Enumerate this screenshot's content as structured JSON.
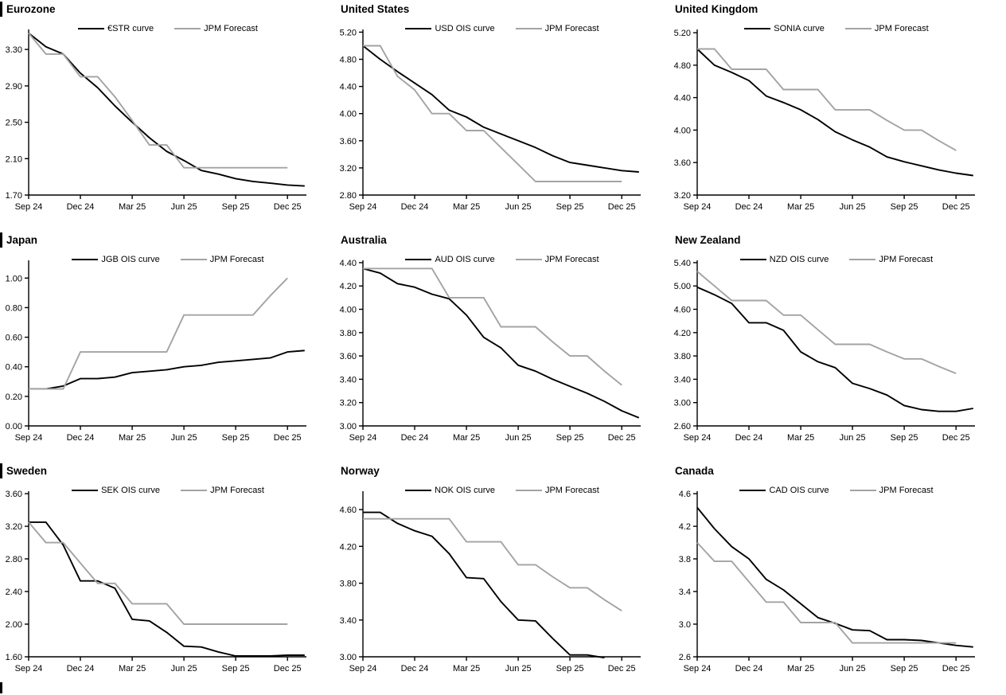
{
  "accent_colors": {
    "curve": "#000000",
    "forecast": "#a3a3a3"
  },
  "chart_data": {
    "type": "line",
    "x_ticklabels": [
      "Sep 24",
      "Dec 24",
      "Mar 25",
      "Jun 25",
      "Sep 25",
      "Dec 25"
    ],
    "x_tick_months": [
      0,
      3,
      6,
      9,
      12,
      15
    ],
    "x_axis_span_months": 16.1,
    "legend_position": "top-center",
    "grid": "off",
    "charts": [
      {
        "title": "Eurozone",
        "ylim": [
          1.7,
          3.52
        ],
        "yticks": [
          "1.70",
          "2.10",
          "2.50",
          "2.90",
          "3.30"
        ],
        "ytick_values": [
          1.7,
          2.1,
          2.5,
          2.9,
          3.3
        ],
        "series": [
          {
            "name": "€STR curve",
            "color": "#000000",
            "values": [
              3.48,
              3.33,
              3.25,
              3.04,
              2.88,
              2.68,
              2.5,
              2.33,
              2.18,
              2.08,
              1.97,
              1.93,
              1.88,
              1.85,
              1.83,
              1.81,
              1.8
            ]
          },
          {
            "name": "JPM Forecast",
            "color": "#a3a3a3",
            "values": [
              3.48,
              3.25,
              3.25,
              3.0,
              3.0,
              2.78,
              2.52,
              2.25,
              2.25,
              2.0,
              2.0,
              2.0,
              2.0,
              2.0,
              2.0,
              2.0
            ]
          }
        ]
      },
      {
        "title": "United States",
        "ylim": [
          2.8,
          5.24
        ],
        "yticks": [
          "2.80",
          "3.20",
          "3.60",
          "4.00",
          "4.40",
          "4.80",
          "5.20"
        ],
        "ytick_values": [
          2.8,
          3.2,
          3.6,
          4.0,
          4.4,
          4.8,
          5.2
        ],
        "series": [
          {
            "name": "USD OIS curve",
            "color": "#000000",
            "values": [
              5.0,
              4.8,
              4.62,
              4.45,
              4.28,
              4.05,
              3.95,
              3.8,
              3.7,
              3.6,
              3.5,
              3.38,
              3.28,
              3.24,
              3.2,
              3.16,
              3.14
            ]
          },
          {
            "name": "JPM Forecast",
            "color": "#a3a3a3",
            "values": [
              5.0,
              5.0,
              4.55,
              4.35,
              4.0,
              4.0,
              3.75,
              3.75,
              3.5,
              3.25,
              3.0,
              3.0,
              3.0,
              3.0,
              3.0,
              3.0
            ]
          }
        ]
      },
      {
        "title": "United Kingdom",
        "ylim": [
          3.2,
          5.24
        ],
        "yticks": [
          "3.20",
          "3.60",
          "4.00",
          "4.40",
          "4.80",
          "5.20"
        ],
        "ytick_values": [
          3.2,
          3.6,
          4.0,
          4.4,
          4.8,
          5.2
        ],
        "series": [
          {
            "name": "SONIA curve",
            "color": "#000000",
            "values": [
              5.0,
              4.8,
              4.71,
              4.61,
              4.42,
              4.34,
              4.25,
              4.13,
              3.98,
              3.88,
              3.79,
              3.67,
              3.61,
              3.56,
              3.51,
              3.47,
              3.44
            ]
          },
          {
            "name": "JPM Forecast",
            "color": "#a3a3a3",
            "values": [
              5.0,
              5.0,
              4.75,
              4.75,
              4.75,
              4.5,
              4.5,
              4.5,
              4.25,
              4.25,
              4.25,
              4.12,
              4.0,
              4.0,
              3.87,
              3.75
            ]
          }
        ]
      },
      {
        "title": "Japan",
        "ylim": [
          0.0,
          1.12
        ],
        "yticks": [
          "0.00",
          "0.20",
          "0.40",
          "0.60",
          "0.80",
          "1.00"
        ],
        "ytick_values": [
          0.0,
          0.2,
          0.4,
          0.6,
          0.8,
          1.0
        ],
        "series": [
          {
            "name": "JGB OIS curve",
            "color": "#000000",
            "values": [
              0.25,
              0.25,
              0.27,
              0.32,
              0.32,
              0.33,
              0.36,
              0.37,
              0.38,
              0.4,
              0.41,
              0.43,
              0.44,
              0.45,
              0.46,
              0.5,
              0.51
            ]
          },
          {
            "name": "JPM Forecast",
            "color": "#a3a3a3",
            "values": [
              0.25,
              0.25,
              0.25,
              0.5,
              0.5,
              0.5,
              0.5,
              0.5,
              0.5,
              0.75,
              0.75,
              0.75,
              0.75,
              0.75,
              0.88,
              1.0
            ]
          }
        ]
      },
      {
        "title": "Australia",
        "ylim": [
          3.0,
          4.42
        ],
        "yticks": [
          "3.00",
          "3.20",
          "3.40",
          "3.60",
          "3.80",
          "4.00",
          "4.20",
          "4.40"
        ],
        "ytick_values": [
          3.0,
          3.2,
          3.4,
          3.6,
          3.8,
          4.0,
          4.2,
          4.4
        ],
        "series": [
          {
            "name": "AUD OIS curve",
            "color": "#000000",
            "values": [
              4.35,
              4.31,
              4.22,
              4.19,
              4.13,
              4.09,
              3.95,
              3.76,
              3.67,
              3.52,
              3.47,
              3.4,
              3.34,
              3.28,
              3.21,
              3.13,
              3.07
            ]
          },
          {
            "name": "JPM Forecast",
            "color": "#a3a3a3",
            "values": [
              4.35,
              4.35,
              4.35,
              4.35,
              4.35,
              4.1,
              4.1,
              4.1,
              3.85,
              3.85,
              3.85,
              3.72,
              3.6,
              3.6,
              3.47,
              3.35
            ]
          }
        ]
      },
      {
        "title": "New Zealand",
        "ylim": [
          2.6,
          5.44
        ],
        "yticks": [
          "2.60",
          "3.00",
          "3.40",
          "3.80",
          "4.20",
          "4.60",
          "5.00",
          "5.40"
        ],
        "ytick_values": [
          2.6,
          3.0,
          3.4,
          3.8,
          4.2,
          4.6,
          5.0,
          5.4
        ],
        "series": [
          {
            "name": "NZD OIS curve",
            "color": "#000000",
            "values": [
              4.98,
              4.85,
              4.7,
              4.37,
              4.37,
              4.24,
              3.87,
              3.7,
              3.6,
              3.33,
              3.24,
              3.13,
              2.95,
              2.88,
              2.85,
              2.85,
              2.9
            ]
          },
          {
            "name": "JPM Forecast",
            "color": "#a3a3a3",
            "values": [
              5.25,
              5.0,
              4.75,
              4.75,
              4.75,
              4.5,
              4.5,
              4.25,
              4.0,
              4.0,
              4.0,
              3.87,
              3.75,
              3.75,
              3.62,
              3.5
            ]
          }
        ]
      },
      {
        "title": "Sweden",
        "ylim": [
          1.6,
          3.63
        ],
        "yticks": [
          "1.60",
          "2.00",
          "2.40",
          "2.80",
          "3.20",
          "3.60"
        ],
        "ytick_values": [
          1.6,
          2.0,
          2.4,
          2.8,
          3.2,
          3.6
        ],
        "series": [
          {
            "name": "SEK OIS curve",
            "color": "#000000",
            "values": [
              3.25,
              3.25,
              2.97,
              2.53,
              2.53,
              2.44,
              2.06,
              2.04,
              1.9,
              1.73,
              1.72,
              1.66,
              1.61,
              1.61,
              1.61,
              1.62,
              1.62
            ]
          },
          {
            "name": "JPM Forecast",
            "color": "#a3a3a3",
            "values": [
              3.25,
              3.0,
              3.0,
              2.75,
              2.5,
              2.5,
              2.25,
              2.25,
              2.25,
              2.0,
              2.0,
              2.0,
              2.0,
              2.0,
              2.0,
              2.0
            ]
          }
        ]
      },
      {
        "title": "Norway",
        "ylim": [
          3.0,
          4.8
        ],
        "yticks": [
          "3.00",
          "3.40",
          "3.80",
          "4.20",
          "4.60"
        ],
        "ytick_values": [
          3.0,
          3.4,
          3.8,
          4.2,
          4.6
        ],
        "series": [
          {
            "name": "NOK OIS curve",
            "color": "#000000",
            "values": [
              4.57,
              4.57,
              4.45,
              4.37,
              4.31,
              4.12,
              3.86,
              3.85,
              3.6,
              3.4,
              3.39,
              3.2,
              3.02,
              3.02,
              2.99,
              null,
              null
            ]
          },
          {
            "name": "JPM Forecast",
            "color": "#a3a3a3",
            "values": [
              4.5,
              4.5,
              4.5,
              4.5,
              4.5,
              4.5,
              4.25,
              4.25,
              4.25,
              4.0,
              4.0,
              3.87,
              3.75,
              3.75,
              3.62,
              3.5
            ]
          }
        ]
      },
      {
        "title": "Canada",
        "ylim": [
          2.6,
          4.63
        ],
        "yticks": [
          "2.6",
          "3.0",
          "3.4",
          "3.8",
          "4.2",
          "4.6"
        ],
        "ytick_values": [
          2.6,
          3.0,
          3.4,
          3.8,
          4.2,
          4.6
        ],
        "series": [
          {
            "name": "CAD OIS curve",
            "color": "#000000",
            "values": [
              4.43,
              4.17,
              3.95,
              3.8,
              3.55,
              3.42,
              3.25,
              3.08,
              3.01,
              2.93,
              2.92,
              2.81,
              2.81,
              2.8,
              2.77,
              2.74,
              2.72
            ]
          },
          {
            "name": "JPM Forecast",
            "color": "#a3a3a3",
            "values": [
              4.0,
              3.77,
              3.77,
              3.52,
              3.27,
              3.27,
              3.02,
              3.02,
              3.02,
              2.77,
              2.77,
              2.77,
              2.77,
              2.77,
              2.77,
              2.77
            ]
          }
        ]
      }
    ]
  }
}
